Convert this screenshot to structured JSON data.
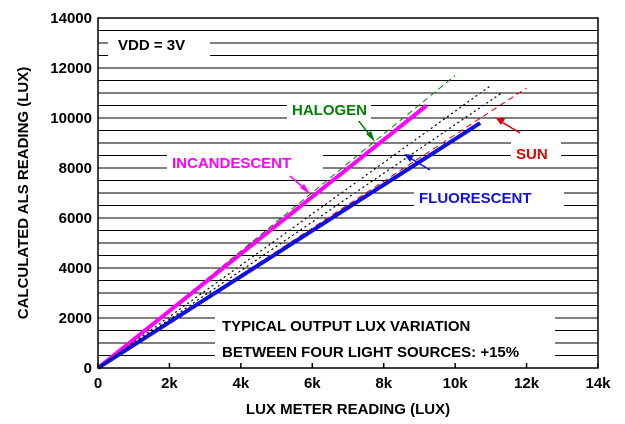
{
  "chart_data": {
    "type": "line",
    "xlabel": "LUX METER READING (LUX)",
    "ylabel": "CALCULATED ALS READING (LUX)",
    "xlim": [
      0,
      14000
    ],
    "ylim": [
      0,
      14000
    ],
    "x_ticks": [
      0,
      2000,
      4000,
      6000,
      8000,
      10000,
      12000,
      14000
    ],
    "x_tick_labels": [
      "0",
      "2k",
      "4k",
      "6k",
      "8k",
      "10k",
      "12k",
      "14k"
    ],
    "y_ticks": [
      0,
      2000,
      4000,
      6000,
      8000,
      10000,
      12000,
      14000
    ],
    "y_tick_labels": [
      "0",
      "2000",
      "4000",
      "6000",
      "8000",
      "10000",
      "12000",
      "14000"
    ],
    "grid": "horizontal",
    "series": [
      {
        "name": "HALOGEN",
        "color": "#008000",
        "style": "dashed",
        "x": [
          0,
          10000
        ],
        "y": [
          0,
          11700
        ]
      },
      {
        "name": "SUN",
        "color": "#e00000",
        "style": "dashed",
        "x": [
          0,
          12000
        ],
        "y": [
          0,
          11200
        ]
      },
      {
        "name": "INCANDESCENT",
        "color": "#ff00ff",
        "style": "solid",
        "x": [
          0,
          9200
        ],
        "y": [
          0,
          10500
        ]
      },
      {
        "name": "FLUORESCENT",
        "color": "#1010e0",
        "style": "solid",
        "x": [
          0,
          10700
        ],
        "y": [
          0,
          9800
        ]
      },
      {
        "name": "",
        "color": "#000000",
        "style": "dotted",
        "x": [
          0,
          11000
        ],
        "y": [
          0,
          11300
        ]
      },
      {
        "name": "",
        "color": "#000000",
        "style": "dotted",
        "x": [
          0,
          11300
        ],
        "y": [
          0,
          11000
        ]
      }
    ],
    "annotations": {
      "vdd": "VDD = 3V",
      "note_line1": "TYPICAL OUTPUT LUX VARIATION",
      "note_line2": "BETWEEN FOUR LIGHT SOURCES: +15%"
    }
  }
}
